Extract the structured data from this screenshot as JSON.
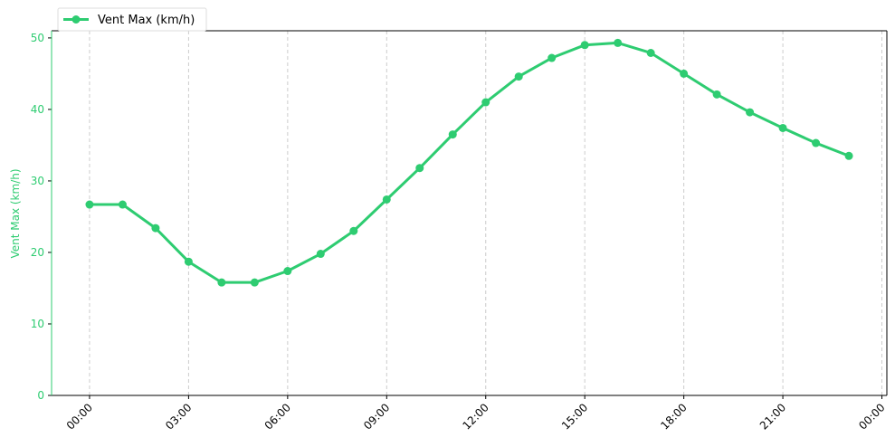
{
  "chart_data": {
    "type": "line",
    "title": "",
    "xlabel": "",
    "ylabel": "Vent Max (km/h)",
    "x_ticks": [
      "00:00",
      "03:00",
      "06:00",
      "09:00",
      "12:00",
      "15:00",
      "18:00",
      "21:00",
      "00:00"
    ],
    "x_tick_hours": [
      0,
      3,
      6,
      9,
      12,
      15,
      18,
      21,
      24
    ],
    "xlim_hours": [
      -1.15,
      24.15
    ],
    "ylim": [
      0,
      51
    ],
    "y_ticks": [
      0,
      10,
      20,
      30,
      40,
      50
    ],
    "grid": "vertical dashed",
    "legend_placement": "top-left, above plot",
    "series": [
      {
        "name": "Vent Max (km/h)",
        "color": "#2ecc71",
        "marker": "circle",
        "x_hours": [
          0,
          1,
          2,
          3,
          4,
          5,
          6,
          7,
          8,
          9,
          10,
          11,
          12,
          13,
          14,
          15,
          16,
          17,
          18,
          19,
          20,
          21,
          22,
          23
        ],
        "x": [
          "00:00",
          "01:00",
          "02:00",
          "03:00",
          "04:00",
          "05:00",
          "06:00",
          "07:00",
          "08:00",
          "09:00",
          "10:00",
          "11:00",
          "12:00",
          "13:00",
          "14:00",
          "15:00",
          "16:00",
          "17:00",
          "18:00",
          "19:00",
          "20:00",
          "21:00",
          "22:00",
          "23:00"
        ],
        "values": [
          26.7,
          26.7,
          23.4,
          18.7,
          15.8,
          15.8,
          17.4,
          19.8,
          23.0,
          27.4,
          31.8,
          36.5,
          41.0,
          44.6,
          47.2,
          49.0,
          49.3,
          47.9,
          45.0,
          42.1,
          39.6,
          37.4,
          35.3,
          33.5
        ]
      }
    ]
  }
}
